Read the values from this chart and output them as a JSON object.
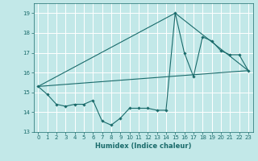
{
  "xlabel": "Humidex (Indice chaleur)",
  "bg_color": "#c2e8e8",
  "grid_color": "#b0d8d8",
  "line_color": "#1a6b6b",
  "xlim": [
    -0.5,
    23.5
  ],
  "ylim": [
    13,
    19.5
  ],
  "yticks": [
    13,
    14,
    15,
    16,
    17,
    18,
    19
  ],
  "xticks": [
    0,
    1,
    2,
    3,
    4,
    5,
    6,
    7,
    8,
    9,
    10,
    11,
    12,
    13,
    14,
    15,
    16,
    17,
    18,
    19,
    20,
    21,
    22,
    23
  ],
  "series_main": {
    "x": [
      0,
      1,
      2,
      3,
      4,
      5,
      6,
      7,
      8,
      9,
      10,
      11,
      12,
      13,
      14,
      15,
      16,
      17,
      18,
      19,
      20,
      21,
      22,
      23
    ],
    "y": [
      15.3,
      14.9,
      14.4,
      14.3,
      14.4,
      14.4,
      14.6,
      13.55,
      13.35,
      13.7,
      14.2,
      14.2,
      14.2,
      14.1,
      14.1,
      19.0,
      17.0,
      15.8,
      17.8,
      17.6,
      17.1,
      16.9,
      16.9,
      16.1
    ]
  },
  "series_trend": {
    "x": [
      0,
      23
    ],
    "y": [
      15.3,
      16.1
    ]
  },
  "series_envelope": {
    "x": [
      0,
      15,
      23
    ],
    "y": [
      15.3,
      19.0,
      16.1
    ]
  }
}
